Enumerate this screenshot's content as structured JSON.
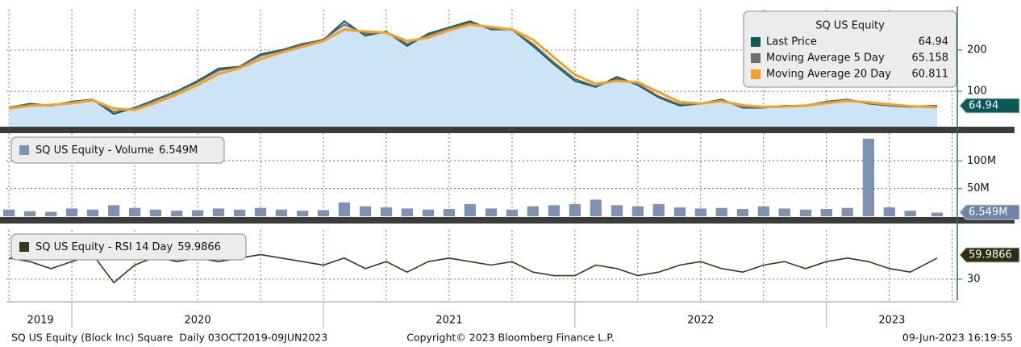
{
  "chart_data": [
    {
      "type": "area",
      "legend_title": "SQ US Equity",
      "x": [
        2019.75,
        2019.833,
        2019.917,
        2020.0,
        2020.083,
        2020.167,
        2020.25,
        2020.333,
        2020.417,
        2020.5,
        2020.583,
        2020.667,
        2020.75,
        2020.833,
        2020.917,
        2021.0,
        2021.083,
        2021.167,
        2021.25,
        2021.333,
        2021.417,
        2021.5,
        2021.583,
        2021.667,
        2021.75,
        2021.833,
        2021.917,
        2022.0,
        2022.083,
        2022.167,
        2022.25,
        2022.333,
        2022.417,
        2022.5,
        2022.583,
        2022.667,
        2022.75,
        2022.833,
        2022.917,
        2023.0,
        2023.083,
        2023.167,
        2023.25,
        2023.333,
        2023.44
      ],
      "xlim": [
        2019.74,
        2023.52
      ],
      "ylim": [
        14,
        298
      ],
      "yticks": [
        100,
        200
      ],
      "series": [
        {
          "name": "Last Price",
          "color": "#0b5a57",
          "fill": "#cde3f6",
          "values": [
            60,
            70,
            65,
            75,
            80,
            45,
            60,
            80,
            100,
            125,
            155,
            160,
            190,
            200,
            215,
            225,
            270,
            235,
            245,
            210,
            240,
            255,
            270,
            250,
            250,
            210,
            165,
            125,
            110,
            135,
            115,
            85,
            65,
            70,
            80,
            60,
            60,
            65,
            65,
            75,
            80,
            70,
            65,
            62,
            64.94
          ]
        },
        {
          "name": "Moving Average 5 Day",
          "color": "#6e6e6e",
          "values": [
            61,
            68,
            66,
            74,
            79,
            50,
            58,
            78,
            98,
            122,
            150,
            160,
            186,
            198,
            213,
            226,
            262,
            240,
            243,
            215,
            236,
            253,
            266,
            252,
            249,
            215,
            170,
            130,
            112,
            130,
            118,
            88,
            68,
            70,
            78,
            62,
            61,
            64,
            66,
            74,
            79,
            71,
            66,
            63,
            65.158
          ]
        },
        {
          "name": "Moving Average 20 Day",
          "color": "#f4a024",
          "values": [
            58,
            65,
            67,
            71,
            78,
            58,
            55,
            72,
            92,
            115,
            142,
            156,
            178,
            194,
            208,
            222,
            250,
            245,
            242,
            222,
            230,
            248,
            262,
            256,
            250,
            225,
            182,
            140,
            118,
            125,
            122,
            98,
            74,
            70,
            76,
            66,
            62,
            63,
            65,
            71,
            77,
            73,
            68,
            64,
            60.811
          ]
        }
      ]
    },
    {
      "type": "bar",
      "name": "SQ US Equity - Volume",
      "color": "#7d91b2",
      "x": [
        2019.75,
        2019.833,
        2019.917,
        2020.0,
        2020.083,
        2020.167,
        2020.25,
        2020.333,
        2020.417,
        2020.5,
        2020.583,
        2020.667,
        2020.75,
        2020.833,
        2020.917,
        2021.0,
        2021.083,
        2021.167,
        2021.25,
        2021.333,
        2021.417,
        2021.5,
        2021.583,
        2021.667,
        2021.75,
        2021.833,
        2021.917,
        2022.0,
        2022.083,
        2022.167,
        2022.25,
        2022.333,
        2022.417,
        2022.5,
        2022.583,
        2022.667,
        2022.75,
        2022.833,
        2022.917,
        2023.0,
        2023.083,
        2023.167,
        2023.25,
        2023.333,
        2023.44
      ],
      "xlim": [
        2019.74,
        2023.52
      ],
      "ylim": [
        0,
        150
      ],
      "yticks": [
        {
          "value": 50,
          "label": "50M"
        },
        {
          "value": 100,
          "label": "100M"
        }
      ],
      "values": [
        12,
        9,
        8,
        14,
        12,
        20,
        15,
        12,
        10,
        11,
        14,
        12,
        15,
        12,
        10,
        11,
        25,
        18,
        16,
        14,
        12,
        13,
        22,
        14,
        12,
        18,
        20,
        22,
        30,
        20,
        18,
        22,
        16,
        14,
        15,
        13,
        18,
        14,
        12,
        13,
        15,
        140,
        16,
        10,
        6.549
      ],
      "value_labels": [
        null,
        null,
        null,
        null,
        null,
        null,
        null,
        null,
        null,
        null,
        null,
        null,
        null,
        null,
        null,
        null,
        null,
        null,
        null,
        null,
        null,
        null,
        null,
        null,
        null,
        null,
        null,
        null,
        null,
        null,
        null,
        null,
        null,
        null,
        null,
        null,
        null,
        null,
        null,
        null,
        null,
        null,
        null,
        null,
        "6.549M"
      ]
    },
    {
      "type": "line",
      "name": "SQ US Equity - RSI 14 Day",
      "color": "#3a3818",
      "x": [
        2019.75,
        2019.833,
        2019.917,
        2020.0,
        2020.083,
        2020.167,
        2020.25,
        2020.333,
        2020.417,
        2020.5,
        2020.583,
        2020.667,
        2020.75,
        2020.833,
        2020.917,
        2021.0,
        2021.083,
        2021.167,
        2021.25,
        2021.333,
        2021.417,
        2021.5,
        2021.583,
        2021.667,
        2021.75,
        2021.833,
        2021.917,
        2022.0,
        2022.083,
        2022.167,
        2022.25,
        2022.333,
        2022.417,
        2022.5,
        2022.583,
        2022.667,
        2022.75,
        2022.833,
        2022.917,
        2023.0,
        2023.083,
        2023.167,
        2023.25,
        2023.333,
        2023.44
      ],
      "xlim": [
        2019.74,
        2023.52
      ],
      "ylim": [
        0,
        100
      ],
      "yticks": [
        30
      ],
      "values": [
        60,
        55,
        45,
        55,
        65,
        25,
        50,
        62,
        55,
        60,
        55,
        60,
        65,
        60,
        55,
        50,
        60,
        45,
        55,
        40,
        55,
        60,
        55,
        50,
        55,
        40,
        35,
        35,
        50,
        45,
        35,
        40,
        50,
        55,
        45,
        40,
        50,
        55,
        45,
        55,
        60,
        55,
        45,
        40,
        59.9866
      ],
      "xticks": [
        {
          "value": 2019.75,
          "label": "2019"
        },
        {
          "value": 2020,
          "label": "2020"
        },
        {
          "value": 2021,
          "label": "2021"
        },
        {
          "value": 2022,
          "label": "2022"
        },
        {
          "value": 2023,
          "label": "2023"
        }
      ]
    }
  ],
  "footer": {
    "left": "SQ US Equity (Block Inc) Square  Daily 03OCT2019-09JUN2023",
    "center": "Copyright© 2023 Bloomberg Finance L.P.",
    "right": "09-Jun-2023 16:19:55"
  }
}
